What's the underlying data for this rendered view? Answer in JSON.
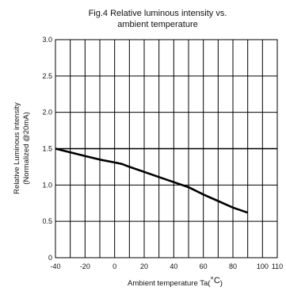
{
  "chart_data": {
    "type": "line",
    "title_lines": [
      "Fig.4 Relative luminous intensity vs.",
      "ambient temperature"
    ],
    "xlabel": "Ambient temperature Ta(",
    "xlabel_unit": "°C",
    "xlabel_close": ")",
    "ylabel_lines": [
      "Relative Luminous intensity",
      "(Normalized @20mA)"
    ],
    "xlim": [
      -40,
      110
    ],
    "ylim": [
      0,
      3.0
    ],
    "x_ticks": [
      "-40",
      "-20",
      "0",
      "20",
      "40",
      "60",
      "80",
      "100",
      "110"
    ],
    "x_tick_values": [
      -40,
      -20,
      0,
      20,
      40,
      60,
      80,
      100,
      110
    ],
    "y_ticks": [
      "0",
      "0.5",
      "1.0",
      "1.5",
      "2.0",
      "2.5",
      "3.0"
    ],
    "y_tick_values": [
      0,
      0.5,
      1.0,
      1.5,
      2.0,
      2.5,
      3.0
    ],
    "x_grid": [
      -40,
      -30,
      -20,
      -10,
      0,
      10,
      20,
      30,
      40,
      50,
      60,
      70,
      80,
      90,
      100,
      110
    ],
    "reference_line": 1.5,
    "grid": true,
    "series": [
      {
        "x": [
          -40,
          -30,
          -20,
          -10,
          0,
          5,
          10,
          20,
          30,
          40,
          50,
          60,
          70,
          80,
          90
        ],
        "y": [
          1.5,
          1.45,
          1.4,
          1.35,
          1.31,
          1.29,
          1.25,
          1.18,
          1.11,
          1.04,
          0.97,
          0.87,
          0.78,
          0.69,
          0.62
        ]
      }
    ],
    "colors": {
      "line": "#000000",
      "grid": "#000000"
    }
  }
}
